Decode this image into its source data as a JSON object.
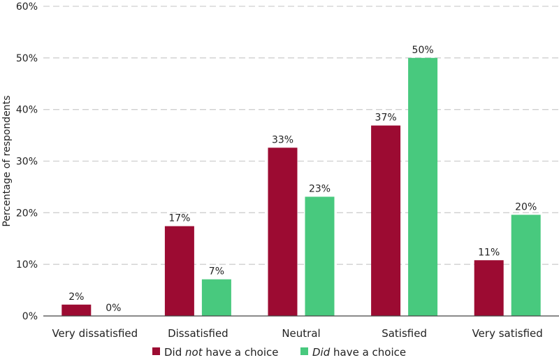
{
  "chart_data": {
    "type": "bar",
    "categories": [
      "Very dissatisfied",
      "Dissatisfied",
      "Neutral",
      "Satisfied",
      "Very satisfied"
    ],
    "series": [
      {
        "name": "Did not have a choice",
        "legend_parts": [
          {
            "text": "Did ",
            "italic": false
          },
          {
            "text": "not",
            "italic": true
          },
          {
            "text": " have a choice",
            "italic": false
          }
        ],
        "color": "#9c0b32",
        "values": [
          2.2,
          17.4,
          32.6,
          36.9,
          10.8
        ],
        "labels": [
          "2%",
          "17%",
          "33%",
          "37%",
          "11%"
        ]
      },
      {
        "name": "Did have a choice",
        "legend_parts": [
          {
            "text": "Did",
            "italic": true
          },
          {
            "text": " have a choice",
            "italic": false
          }
        ],
        "color": "#48c97e",
        "values": [
          0,
          7.1,
          23.1,
          50.0,
          19.6
        ],
        "labels": [
          "0%",
          "7%",
          "23%",
          "50%",
          "20%"
        ]
      }
    ],
    "ylabel": "Percentage of respondents",
    "xlabel": "",
    "ylim": [
      0,
      60
    ],
    "yticks": [
      0,
      10,
      20,
      30,
      40,
      50,
      60
    ],
    "ytick_labels": [
      "0%",
      "10%",
      "20%",
      "30%",
      "40%",
      "50%",
      "60%"
    ],
    "grid": true,
    "legend_position": "bottom"
  }
}
